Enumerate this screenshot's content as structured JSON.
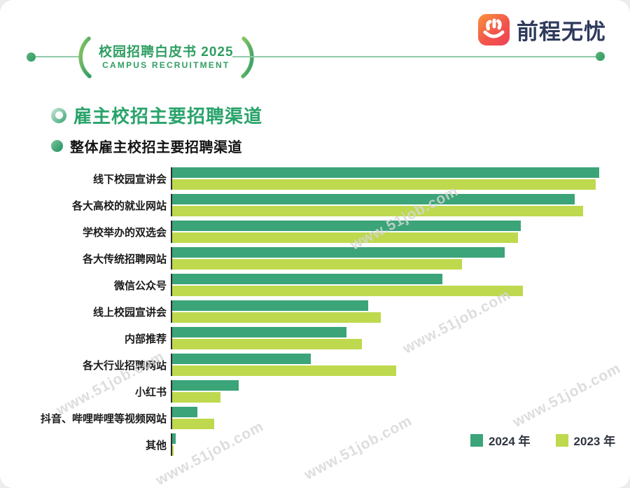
{
  "logo": {
    "text": "前程无忧",
    "icon": "smiling-hand-icon",
    "icon_gradient": [
      "#f9953c",
      "#ee4156"
    ],
    "text_color": "#2e3a5c"
  },
  "header_badge": {
    "title": "校园招聘白皮书 2025",
    "subtitle": "CAMPUS RECRUITMENT",
    "color": "#2f9e62"
  },
  "section": {
    "title": "雇主校招主要招聘渠道",
    "subtitle": "整体雇主校招主要招聘渠道",
    "title_color": "#29a36b"
  },
  "watermark": {
    "text": "www.51job.com"
  },
  "chart_data": {
    "type": "bar",
    "orientation": "horizontal",
    "title": "整体雇主校招主要招聘渠道",
    "xlabel": "",
    "ylabel": "",
    "grid": false,
    "legend_position": "bottom-right",
    "xlim": [
      0,
      100
    ],
    "note": "axis is unlabeled in source; values are estimated bar lengths as % of plot width",
    "categories": [
      "线下校园宣讲会",
      "各大高校的就业网站",
      "学校举办的双选会",
      "各大传统招聘网站",
      "微信公众号",
      "线上校园宣讲会",
      "内部推荐",
      "各大行业招聘网站",
      "小红书",
      "抖音、哔哩哔哩等视频网站",
      "其他"
    ],
    "series": [
      {
        "name": "2024 年",
        "color": "#3ba478",
        "values": [
          98.4,
          92.7,
          80.3,
          76.6,
          62.3,
          45.2,
          40.2,
          31.9,
          15.3,
          5.8,
          0.8
        ]
      },
      {
        "name": "2023 年",
        "color": "#bed94e",
        "values": [
          97.6,
          94.7,
          79.7,
          66.8,
          80.8,
          48.1,
          43.7,
          51.6,
          11.1,
          9.7,
          0.4
        ]
      }
    ]
  }
}
